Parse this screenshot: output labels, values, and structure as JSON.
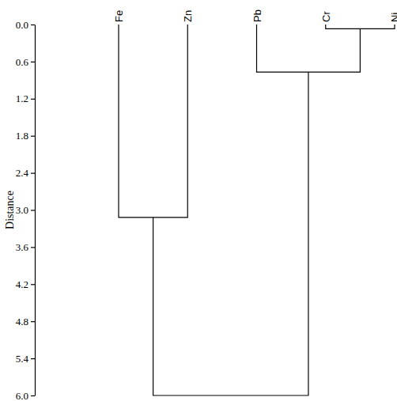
{
  "chart_data": {
    "type": "dendrogram",
    "ylabel": "Distance",
    "leaves": [
      "Fe",
      "Zn",
      "Pb",
      "Cr",
      "Ni"
    ],
    "merges": [
      {
        "children": [
          3,
          4
        ],
        "height": 0.07
      },
      {
        "children": [
          2,
          5
        ],
        "height": 0.77
      },
      {
        "children": [
          0,
          1
        ],
        "height": 3.12
      },
      {
        "children": [
          7,
          6
        ],
        "height": 6.0
      }
    ],
    "ylim": [
      0,
      6
    ],
    "yticks": [
      {
        "value": 0,
        "label": "0.0"
      },
      0.6,
      1.2,
      1.8,
      2.4,
      {
        "value": 3,
        "label": "3.0"
      },
      3.6,
      4.2,
      4.8,
      5.4,
      {
        "value": 6,
        "label": "6.0"
      }
    ],
    "color": "#000000"
  }
}
